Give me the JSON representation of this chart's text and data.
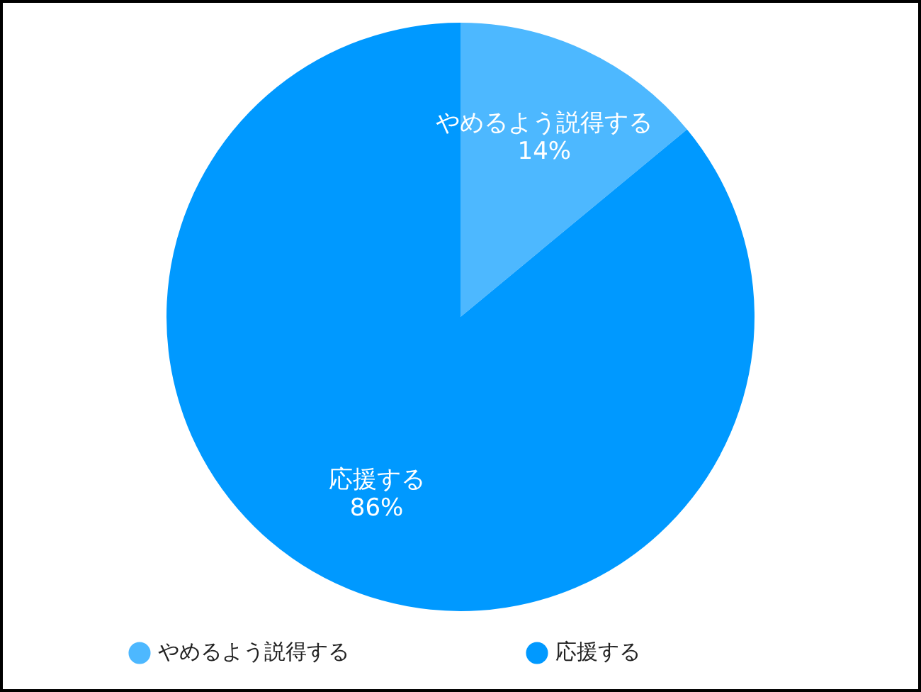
{
  "chart_data": {
    "type": "pie",
    "categories": [
      "やめるよう説得する",
      "応援する"
    ],
    "values": [
      14,
      86
    ],
    "colors": [
      "#4db8ff",
      "#0099ff"
    ],
    "value_labels": [
      "14%",
      "86%"
    ],
    "legend": "bottom"
  }
}
